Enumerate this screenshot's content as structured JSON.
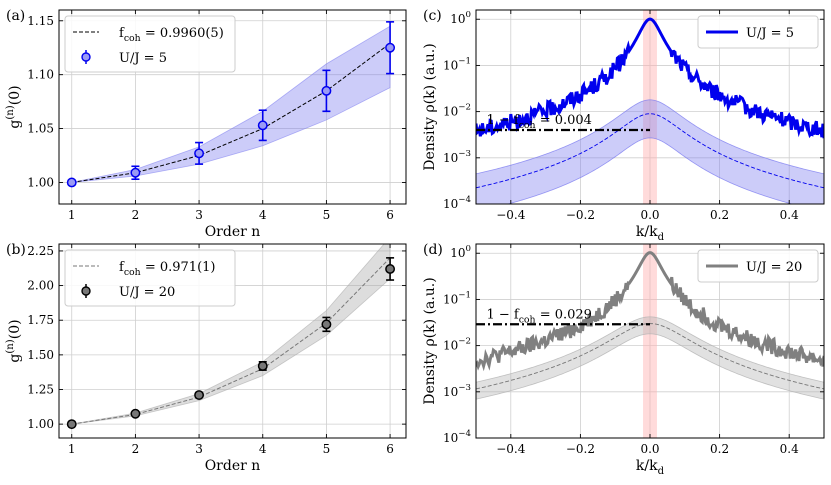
{
  "chart_data": [
    {
      "panel": "(a)",
      "type": "line",
      "xlabel": "Order n",
      "ylabel": "g^(n)(0)",
      "xlim": [
        0.8,
        6.25
      ],
      "ylim": [
        0.98,
        1.16
      ],
      "xticks": [
        1,
        2,
        3,
        4,
        5,
        6
      ],
      "yticks": [
        1.0,
        1.05,
        1.1,
        1.15
      ],
      "yticklabels": [
        "1.00",
        "1.05",
        "1.10",
        "1.15"
      ],
      "grid": true,
      "legend_position": "top-left",
      "color": "#0000ee",
      "band_color": "#8080f0",
      "fit": {
        "label": "f_coh = 0.9960(5)",
        "x": [
          1,
          2,
          3,
          4,
          5,
          6
        ],
        "y": [
          1.0,
          1.009,
          1.025,
          1.05,
          1.085,
          1.129
        ],
        "band_lo": [
          1.0,
          1.006,
          1.017,
          1.034,
          1.058,
          1.088
        ],
        "band_hi": [
          1.0,
          1.012,
          1.033,
          1.066,
          1.11,
          1.145
        ]
      },
      "series": [
        {
          "name": "U/J = 5",
          "x": [
            1,
            2,
            3,
            4,
            5,
            6
          ],
          "y": [
            1.0,
            1.009,
            1.027,
            1.053,
            1.085,
            1.125
          ],
          "err": [
            0.002,
            0.006,
            0.01,
            0.014,
            0.019,
            0.024
          ]
        }
      ]
    },
    {
      "panel": "(b)",
      "type": "line",
      "xlabel": "Order n",
      "ylabel": "g^(n)(0)",
      "xlim": [
        0.8,
        6.25
      ],
      "ylim": [
        0.9,
        2.3
      ],
      "xticks": [
        1,
        2,
        3,
        4,
        5,
        6
      ],
      "yticks": [
        1.0,
        1.25,
        1.5,
        1.75,
        2.0,
        2.25
      ],
      "yticklabels": [
        "1.00",
        "1.25",
        "1.50",
        "1.75",
        "2.00",
        "2.25"
      ],
      "grid": true,
      "legend_position": "top-left",
      "color": "#000000",
      "band_color": "#aaaaaa",
      "fit": {
        "label": "f_coh = 0.971(1)",
        "x": [
          1,
          2,
          3,
          4,
          5,
          6
        ],
        "y": [
          1.0,
          1.07,
          1.195,
          1.4,
          1.73,
          2.2
        ],
        "band_lo": [
          1.0,
          1.06,
          1.17,
          1.35,
          1.64,
          2.05
        ],
        "band_hi": [
          1.0,
          1.08,
          1.22,
          1.45,
          1.82,
          2.35
        ]
      },
      "series": [
        {
          "name": "U/J = 20",
          "x": [
            1,
            2,
            3,
            4,
            5,
            6
          ],
          "y": [
            1.0,
            1.075,
            1.21,
            1.42,
            1.72,
            2.12
          ],
          "err": [
            0.005,
            0.01,
            0.015,
            0.03,
            0.05,
            0.08
          ]
        }
      ]
    },
    {
      "panel": "(c)",
      "type": "line",
      "xlabel": "k/k_d",
      "ylabel": "Density ρ(k) (a.u.)",
      "xlim": [
        -0.5,
        0.5
      ],
      "ylim_log10": [
        -4,
        0.2
      ],
      "yscale": "log",
      "xticks": [
        -0.4,
        -0.2,
        0.0,
        0.2,
        0.4
      ],
      "xticklabels": [
        "−0.4",
        "−0.2",
        "0.0",
        "0.2",
        "0.4"
      ],
      "yticks_log10": [
        -4,
        -3,
        -2,
        -1,
        0
      ],
      "yticklabels": [
        "10^-4",
        "10^-3",
        "10^-2",
        "10^-1",
        "10^0"
      ],
      "grid": true,
      "legend_position": "top-right",
      "color": "#0000ee",
      "band_color": "#8080f0",
      "series": [
        {
          "name": "U/J = 5",
          "peak": 1.0,
          "peak_width": 0.03,
          "background_peak": 0.009
        }
      ],
      "envelope": {
        "peak": 0.009,
        "width": 0.08,
        "band_factor_hi": 2.0,
        "band_factor_lo": 0.3
      },
      "shaded_region": [
        -0.02,
        0.02
      ],
      "annotation": {
        "text": "1 − f_coh = 0.004",
        "level": 0.004,
        "x_range": [
          -0.5,
          0.0
        ]
      }
    },
    {
      "panel": "(d)",
      "type": "line",
      "xlabel": "k/k_d",
      "ylabel": "Density ρ(k) (a.u.)",
      "xlim": [
        -0.5,
        0.5
      ],
      "ylim_log10": [
        -4,
        0.2
      ],
      "yscale": "log",
      "xticks": [
        -0.4,
        -0.2,
        0.0,
        0.2,
        0.4
      ],
      "xticklabels": [
        "−0.4",
        "−0.2",
        "0.0",
        "0.2",
        "0.4"
      ],
      "yticks_log10": [
        -4,
        -3,
        -2,
        -1,
        0
      ],
      "yticklabels": [
        "10^-4",
        "10^-3",
        "10^-2",
        "10^-1",
        "10^0"
      ],
      "grid": true,
      "legend_position": "top-right",
      "color": "#808080",
      "band_color": "#b4b4b4",
      "series": [
        {
          "name": "U/J = 20",
          "peak": 1.0,
          "peak_width": 0.03,
          "background_peak": 0.03
        }
      ],
      "envelope": {
        "peak": 0.03,
        "width": 0.1,
        "band_factor_hi": 1.4,
        "band_factor_lo": 0.6
      },
      "shaded_region": [
        -0.02,
        0.02
      ],
      "annotation": {
        "text": "1 − f_coh = 0.029",
        "level": 0.029,
        "x_range": [
          -0.5,
          0.0
        ]
      }
    }
  ]
}
